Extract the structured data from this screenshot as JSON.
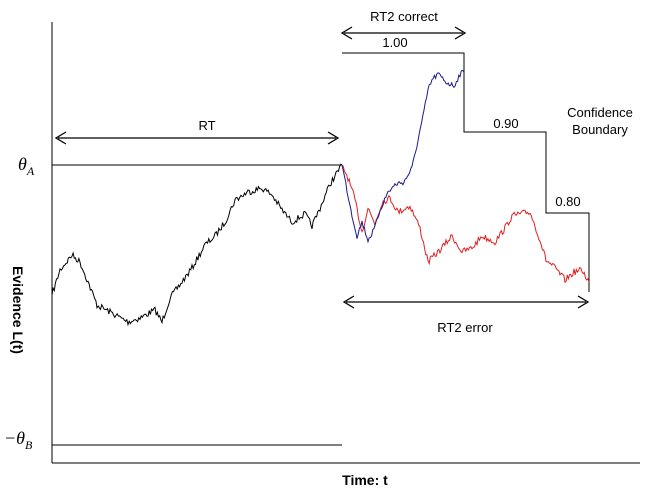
{
  "labels": {
    "rt": "RT",
    "rt2_correct": "RT2 correct",
    "rt2_error": "RT2 error",
    "confidence_boundary_line1": "Confidence",
    "confidence_boundary_line2": "Boundary",
    "conf_100": "1.00",
    "conf_090": "0.90",
    "conf_080": "0.80",
    "theta_a": "θ",
    "theta_a_sub": "A",
    "theta_b_prefix": "−θ",
    "theta_b_sub": "B",
    "x_axis": "Time: t",
    "y_axis": "Evidence L(t)"
  },
  "colors": {
    "pre_decision_path": "#000000",
    "correct_path": "#1a1a8c",
    "error_path": "#e02020",
    "boundary": "#000000"
  }
}
